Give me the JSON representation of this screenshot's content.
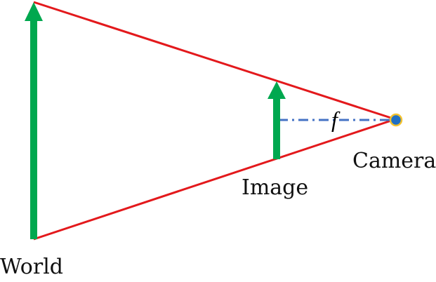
{
  "labels": {
    "world": "World",
    "image": "Image",
    "camera": "Camera",
    "focal_length": "f"
  },
  "colors": {
    "rays": "#e3191c",
    "arrows": "#00a84f",
    "focal_line": "#4472c4",
    "camera_fill": "#1f6fc4",
    "camera_ring": "#f2c230"
  }
}
